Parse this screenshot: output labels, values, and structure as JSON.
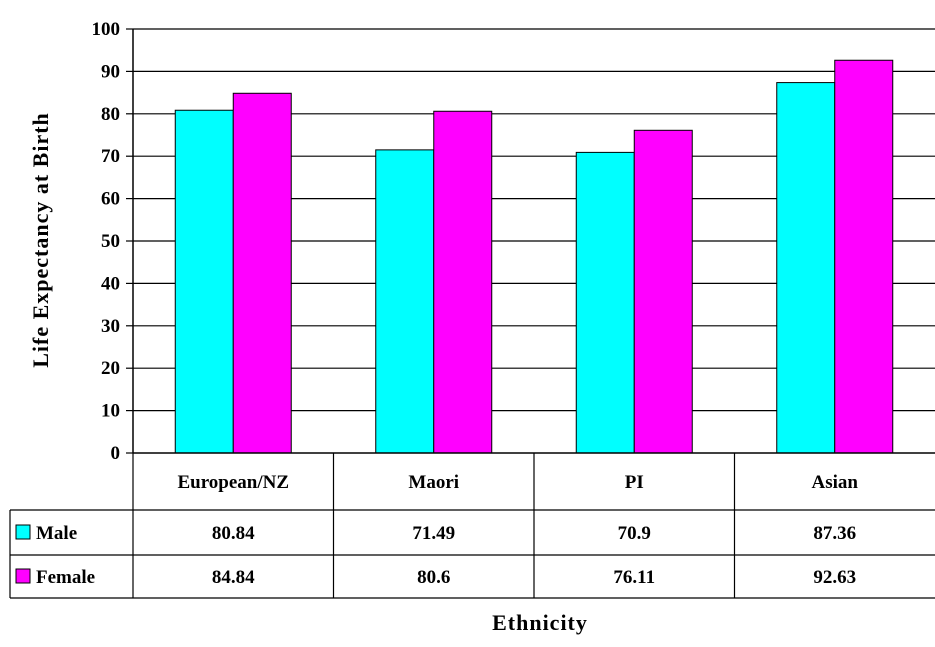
{
  "chart_data": {
    "type": "bar",
    "ylabel": "Life Expectancy at Birth",
    "xlabel": "Ethnicity",
    "categories": [
      "European/NZ",
      "Maori",
      "PI",
      "Asian"
    ],
    "ylim": [
      0,
      100
    ],
    "yticks": [
      0,
      10,
      20,
      30,
      40,
      50,
      60,
      70,
      80,
      90,
      100
    ],
    "grid": "horizontal",
    "legend": "data-table",
    "series": [
      {
        "name": "Male",
        "color": "#00ffff",
        "values": [
          80.84,
          71.49,
          70.9,
          87.36
        ],
        "labels": [
          "80.84",
          "71.49",
          "70.9",
          "87.36"
        ]
      },
      {
        "name": "Female",
        "color": "#ff00ff",
        "values": [
          84.84,
          80.6,
          76.11,
          92.63
        ],
        "labels": [
          "84.84",
          "80.6",
          "76.11",
          "92.63"
        ]
      }
    ]
  }
}
